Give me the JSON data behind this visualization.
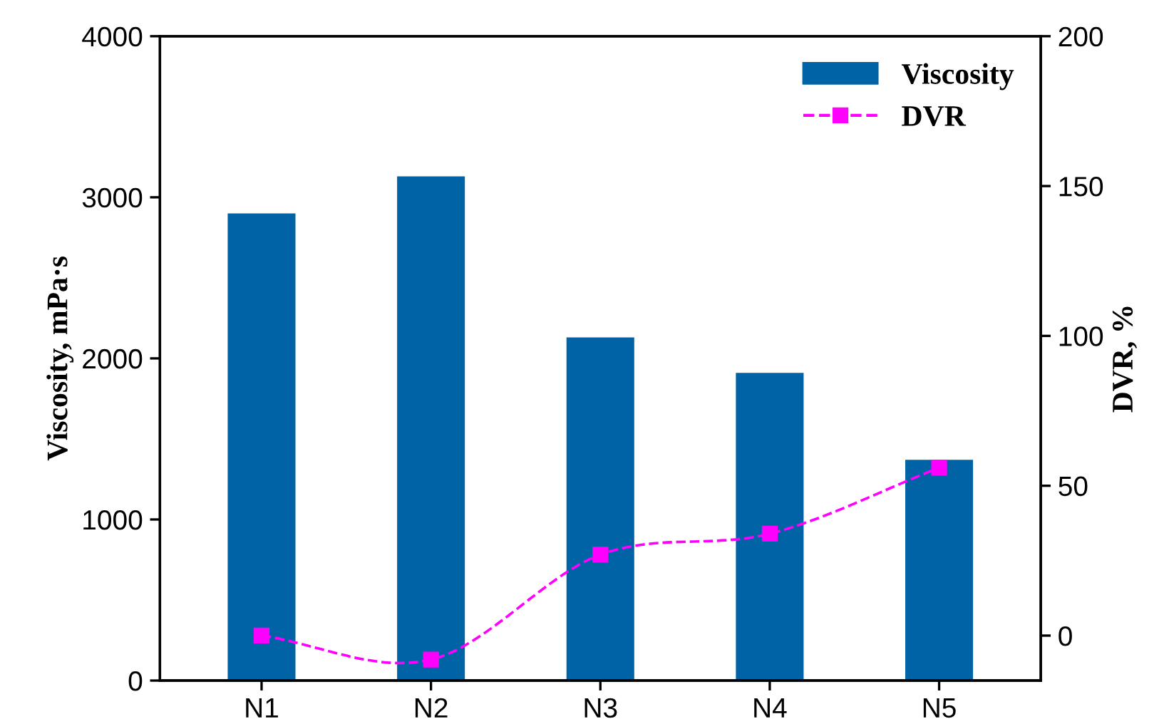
{
  "chart_data": {
    "type": "bar",
    "categories": [
      "N1",
      "N2",
      "N3",
      "N4",
      "N5"
    ],
    "ylabel": "Viscosity, mPa·s",
    "y2label": "DVR, %",
    "ylim": [
      0,
      4000
    ],
    "yticks": [
      0,
      1000,
      2000,
      3000,
      4000
    ],
    "y2lim": [
      -15,
      200
    ],
    "y2ticks": [
      0,
      50,
      100,
      150,
      200
    ],
    "series": [
      {
        "name": "Viscosity",
        "color": "#0063a6",
        "values": [
          2900,
          3130,
          2130,
          1910,
          1370
        ]
      },
      {
        "name": "DVR",
        "type": "line",
        "axis": "y2",
        "color": "#ff00ff",
        "marker": "square",
        "line_style": "dashed",
        "values": [
          0,
          -8,
          27,
          34,
          56
        ]
      }
    ],
    "legend": "top right",
    "grid": false
  }
}
